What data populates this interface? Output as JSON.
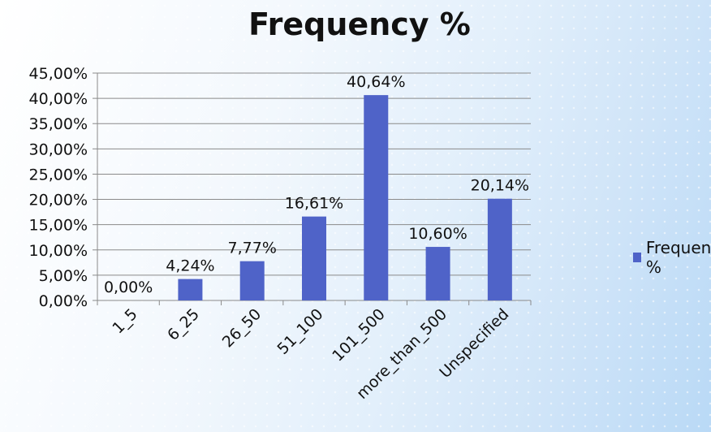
{
  "chart_data": {
    "type": "bar",
    "title": "Frequency %",
    "categories": [
      "1_5",
      "6_25",
      "26_50",
      "51_100",
      "101_500",
      "more_than_500",
      "Unspecified"
    ],
    "series": [
      {
        "name": "Frequency %",
        "values": [
          0.0,
          4.24,
          7.77,
          16.61,
          40.64,
          10.6,
          20.14
        ],
        "data_labels": [
          "0,00%",
          "4,24%",
          "7,77%",
          "16,61%",
          "40,64%",
          "10,60%",
          "20,14%"
        ]
      }
    ],
    "ylim": [
      0,
      45
    ],
    "ytick_values": [
      0,
      5,
      10,
      15,
      20,
      25,
      30,
      35,
      40,
      45
    ],
    "ytick_labels": [
      "0,00%",
      "5,00%",
      "10,00%",
      "15,00%",
      "20,00%",
      "25,00%",
      "30,00%",
      "35,00%",
      "40,00%",
      "45,00%"
    ],
    "grid": true,
    "legend_position": "right",
    "bar_color": "#4f63c8"
  }
}
